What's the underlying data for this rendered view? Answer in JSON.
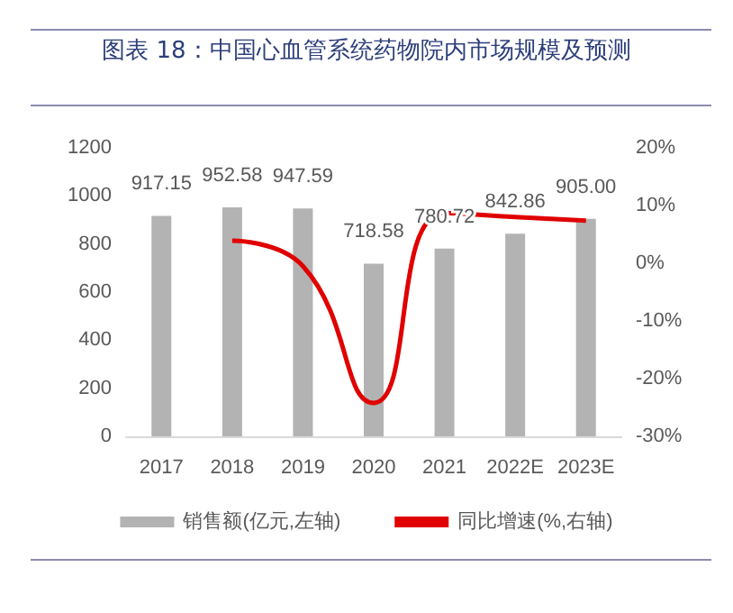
{
  "chart_data": {
    "type": "bar",
    "title": "图表 18：中国心血管系统药物院内市场规模及预测",
    "categories": [
      "2017",
      "2018",
      "2019",
      "2020",
      "2021",
      "2022E",
      "2023E"
    ],
    "series": [
      {
        "name": "销售额(亿元,左轴)",
        "color": "#b3b3b3",
        "values": [
          917.15,
          952.58,
          947.59,
          718.58,
          780.72,
          842.86,
          905.0
        ],
        "value_labels": [
          "917.15",
          "952.58",
          "947.59",
          "718.58",
          "780.72",
          "842.86",
          "905.00"
        ]
      },
      {
        "name": "同比增速(%,右轴)",
        "type": "line",
        "axis": "y2",
        "color": "#e00000",
        "values": [
          null,
          3.9,
          -0.5,
          -24.2,
          8.7,
          8.0,
          7.4
        ]
      }
    ],
    "ylim": [
      0,
      1200
    ],
    "yticks": [
      0,
      200,
      400,
      600,
      800,
      1000,
      1200
    ],
    "y2lim": [
      -30,
      20
    ],
    "y2ticks": [
      {
        "value": -30,
        "label": "-30%"
      },
      {
        "value": -20,
        "label": "-20%"
      },
      {
        "value": -10,
        "label": "-10%"
      },
      {
        "value": 0,
        "label": "0%"
      },
      {
        "value": 10,
        "label": "10%"
      },
      {
        "value": 20,
        "label": "20%"
      }
    ],
    "grid": false,
    "legend": "bottom",
    "marker": "none",
    "line_style": "solid"
  }
}
